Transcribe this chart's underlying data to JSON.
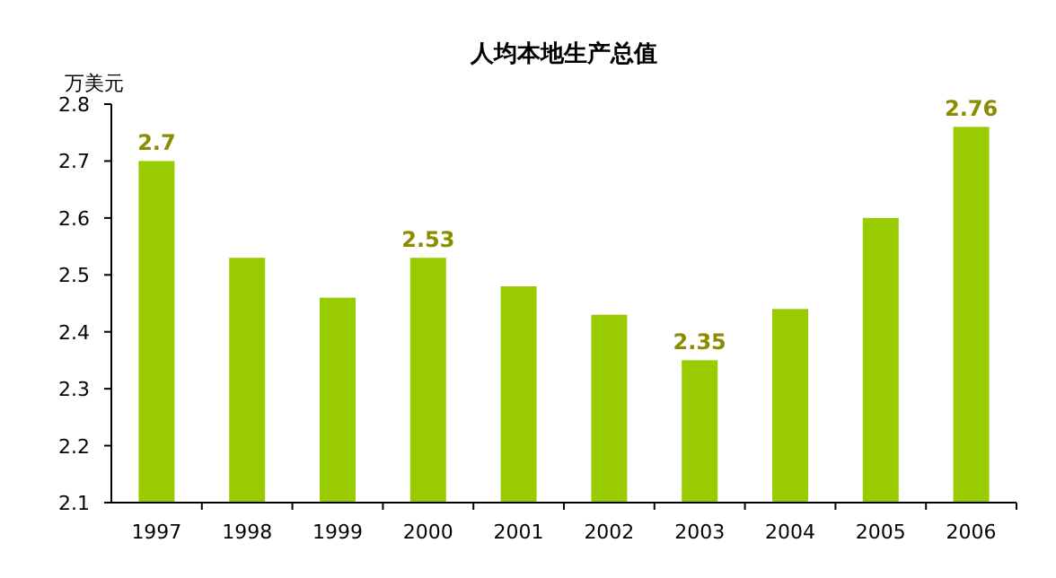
{
  "chart_data": {
    "type": "bar",
    "title": "人均本地生产总值",
    "ylabel": "万美元",
    "categories": [
      "1997",
      "1998",
      "1999",
      "2000",
      "2001",
      "2002",
      "2003",
      "2004",
      "2005",
      "2006"
    ],
    "values": [
      2.7,
      2.53,
      2.46,
      2.53,
      2.48,
      2.43,
      2.35,
      2.44,
      2.6,
      2.76
    ],
    "value_labels": [
      "2.7",
      null,
      null,
      "2.53",
      null,
      null,
      "2.35",
      null,
      null,
      "2.76"
    ],
    "color": "#99cc00",
    "ylim": [
      2.1,
      2.8
    ],
    "yticks": [
      2.1,
      2.2,
      2.3,
      2.4,
      2.5,
      2.6,
      2.7,
      2.8
    ]
  }
}
